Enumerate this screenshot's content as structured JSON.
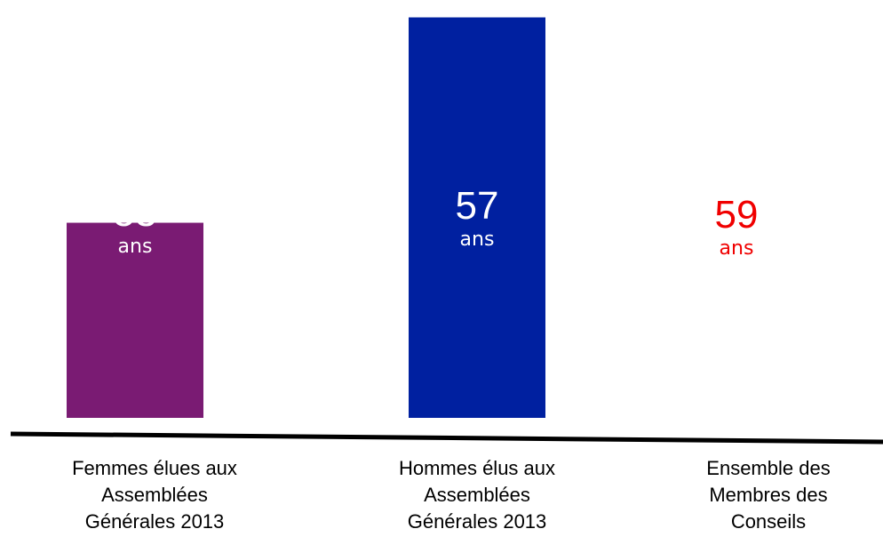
{
  "chart_data": {
    "type": "bar",
    "categories": [
      "Femmes élues aux\nAssemblées\nGénérales 2013",
      "Hommes élus aux\nAssemblées\nGénérales 2013",
      "Ensemble des\nMembres des\nConseils"
    ],
    "values": [
      53,
      57,
      59
    ],
    "value_labels": [
      "53",
      "57",
      "59"
    ],
    "unit_labels": [
      "ans",
      "ans",
      "ans"
    ],
    "bar_colors": [
      "#7a1b73",
      "#0020a0",
      null
    ],
    "label_colors": [
      "#ffffff",
      "#ffffff",
      "#f00000"
    ],
    "axis_color": "#000000",
    "title": "",
    "xlabel": "",
    "ylabel": "",
    "ylim": [
      49.2,
      57.2
    ]
  }
}
